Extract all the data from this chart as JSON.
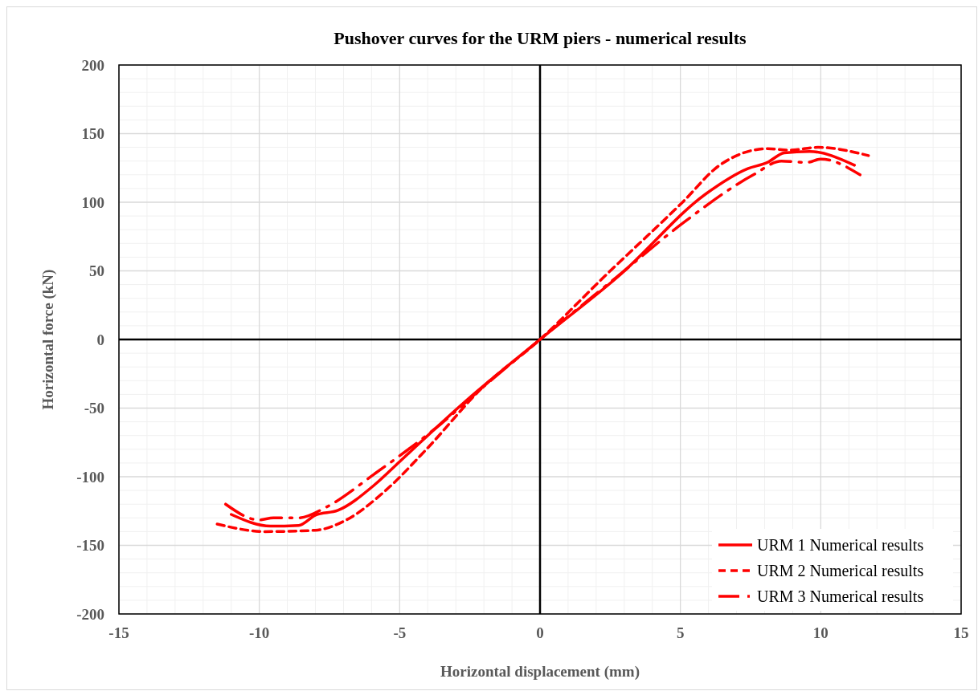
{
  "chart_data": {
    "type": "line",
    "title": "Pushover curves for the URM piers - numerical results",
    "xlabel": "Horizontal displacement (mm)",
    "ylabel": "Horizontal force (kN)",
    "xlim": [
      -15,
      15
    ],
    "xticks": [
      -15,
      -10,
      -5,
      0,
      5,
      10,
      15
    ],
    "ylim": [
      -200,
      200
    ],
    "yticks": [
      -200,
      -150,
      -100,
      -50,
      0,
      50,
      100,
      150,
      200
    ],
    "grid": true,
    "legend": "bottom right",
    "marker": "none",
    "series": [
      {
        "name": "URM 1 Numerical results",
        "color": "#ff0000",
        "line_style": "solid",
        "x": [
          -11.0,
          -9.6,
          -8.6,
          -8.0,
          -7.2,
          -5.9,
          -5.0,
          -2.6,
          0,
          2.9,
          5.9,
          7.4,
          8.1,
          8.7,
          9.6,
          11.2
        ],
        "values": [
          -127.5,
          -136,
          -135.5,
          -128,
          -124.5,
          -106,
          -89,
          -44,
          0,
          48,
          106,
          124.5,
          129,
          136,
          137,
          127
        ]
      },
      {
        "name": "URM 2 Numerical results",
        "color": "#ff0000",
        "line_style": "dashed",
        "x": [
          -11.5,
          -9.8,
          -8.0,
          -6.9,
          -5.5,
          -4.0,
          -2.1,
          0,
          2.3,
          5.1,
          6.4,
          8.1,
          8.9,
          9.9,
          11.7
        ],
        "values": [
          -134.5,
          -140,
          -139,
          -131.5,
          -110,
          -79,
          -36,
          0,
          46,
          100.5,
          127,
          139,
          138,
          140,
          134
        ]
      },
      {
        "name": "URM 3 Numerical results",
        "color": "#ff0000",
        "line_style": "dashdot",
        "x": [
          -11.2,
          -10.0,
          -9.5,
          -8.6,
          -7.6,
          -5.9,
          -3.5,
          -2.1,
          0,
          2.7,
          5.1,
          7.6,
          8.6,
          9.5,
          10.0,
          11.4
        ],
        "values": [
          -120,
          -131.5,
          -130,
          -130,
          -122,
          -98,
          -61,
          -36,
          0,
          45,
          85,
          120,
          130,
          129,
          131.5,
          120
        ]
      }
    ]
  }
}
